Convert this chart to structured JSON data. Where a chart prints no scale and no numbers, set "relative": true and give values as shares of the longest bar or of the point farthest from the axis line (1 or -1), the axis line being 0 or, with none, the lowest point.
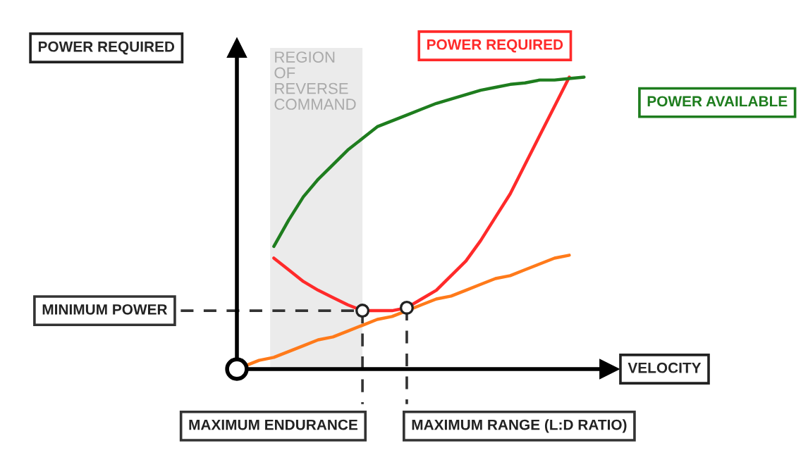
{
  "chart_data": {
    "type": "line",
    "relative": true,
    "xlabel": "VELOCITY",
    "ylabel": "POWER REQUIRED",
    "marker": "none",
    "line_style": "solid",
    "categories": [
      null,
      null,
      null,
      null,
      null,
      null,
      null,
      null,
      null,
      null,
      null,
      null,
      null,
      null,
      null,
      null,
      null,
      null,
      null,
      null,
      null,
      null,
      null,
      null
    ],
    "series": [
      {
        "name": "POWER REQUIRED",
        "color": "#ff2a2a",
        "values": [
          null,
          null,
          0.38,
          0.34,
          0.3,
          0.27,
          0.245,
          0.22,
          0.2,
          0.2,
          0.2,
          0.21,
          0.24,
          0.27,
          0.32,
          0.37,
          0.44,
          0.52,
          0.6,
          0.7,
          0.8,
          0.9,
          1.0,
          null
        ]
      },
      {
        "name": "POWER AVAILABLE",
        "color": "#1e7d1e",
        "values": [
          null,
          null,
          0.42,
          0.51,
          0.59,
          0.65,
          0.7,
          0.75,
          0.79,
          0.83,
          0.85,
          0.87,
          0.89,
          0.91,
          0.925,
          0.94,
          0.955,
          0.965,
          0.975,
          0.98,
          0.99,
          0.99,
          0.995,
          1.0
        ]
      },
      {
        "color": "#ff7a1a",
        "values": [
          0.01,
          0.03,
          0.04,
          0.06,
          0.08,
          0.1,
          0.11,
          0.13,
          0.15,
          0.17,
          0.18,
          0.2,
          0.22,
          0.24,
          0.25,
          0.27,
          0.29,
          0.31,
          0.32,
          0.34,
          0.36,
          0.38,
          0.39,
          null
        ]
      }
    ],
    "ref_lines": [
      {
        "axis": "y",
        "value": 0.2,
        "label": "MINIMUM POWER",
        "color": "#333333",
        "line_style": "dashed"
      }
    ],
    "annotations": [
      "REGION\nOF\nREVERSE\nCOMMAND",
      "MAXIMUM ENDURANCE",
      "MAXIMUM RANGE (L:D RATIO)"
    ]
  }
}
